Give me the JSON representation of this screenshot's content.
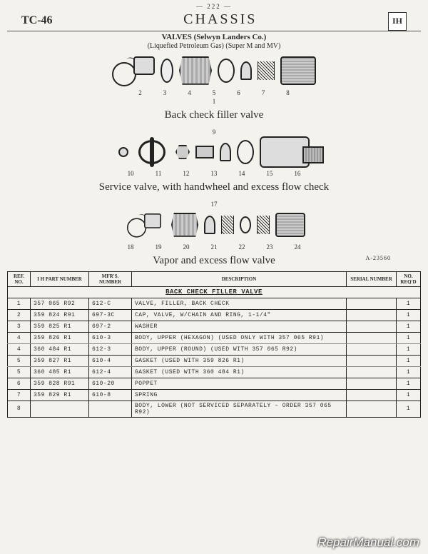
{
  "page_number": "— 222 —",
  "doc_code": "TC-46",
  "title": "CHASSIS",
  "logo_text": "IH",
  "subtitle_line1": "VALVES (Selwyn Landers Co.)",
  "subtitle_line2": "(Liquefied Petroleum Gas) (Super M and MV)",
  "diagrams": {
    "d1": {
      "label": "Back check filler valve",
      "assembly_ref": "1",
      "refs": [
        "2",
        "3",
        "4",
        "5",
        "6",
        "7",
        "8"
      ]
    },
    "d2": {
      "label": "Service valve, with handwheel and excess flow check",
      "assembly_ref": "9",
      "refs": [
        "10",
        "11",
        "12",
        "13",
        "14",
        "15",
        "16"
      ]
    },
    "d3": {
      "label": "Vapor and excess flow valve",
      "assembly_ref": "17",
      "refs": [
        "18",
        "19",
        "20",
        "21",
        "22",
        "23",
        "24"
      ],
      "drawing_no": "A-23560"
    }
  },
  "table": {
    "headers": {
      "ref": "Ref. No.",
      "ih": "I H Part Number",
      "mfr": "Mfr's. Number",
      "desc": "Description",
      "serial": "Serial Number",
      "req": "No. Req'd"
    },
    "section_title": "BACK CHECK FILLER VALVE",
    "rows": [
      {
        "ref": "1",
        "ih": "357 065 R92",
        "mfr": "612-C",
        "desc": "Valve, filler, back check",
        "ser": "",
        "req": "1",
        "rule": true
      },
      {
        "ref": "2",
        "ih": "359 824 R91",
        "mfr": "697-3C",
        "desc": "Cap, valve, w/chain and ring, 1-1/4\"",
        "ser": "",
        "req": "1",
        "rule": true
      },
      {
        "ref": "3",
        "ih": "359 825 R1",
        "mfr": "697-2",
        "desc": "Washer",
        "ser": "",
        "req": "1",
        "rule": true
      },
      {
        "ref": "4",
        "ih": "359 826 R1",
        "mfr": "610-3",
        "desc": "Body, upper (hexagon) (used only with 357 065 R91)",
        "ser": "",
        "req": "1"
      },
      {
        "ref": "4",
        "ih": "360 484 R1",
        "mfr": "612-3",
        "desc": "Body, upper (round) (used with 357 065 R92)",
        "ser": "",
        "req": "1",
        "rule": true
      },
      {
        "ref": "5",
        "ih": "359 827 R1",
        "mfr": "610-4",
        "desc": "Gasket (used with 359 826 R1)",
        "ser": "",
        "req": "1"
      },
      {
        "ref": "5",
        "ih": "360 485 R1",
        "mfr": "612-4",
        "desc": "Gasket (used with 360 484 R1)",
        "ser": "",
        "req": "1",
        "rule": true
      },
      {
        "ref": "6",
        "ih": "359 828 R91",
        "mfr": "610-20",
        "desc": "Poppet",
        "ser": "",
        "req": "1",
        "rule": true
      },
      {
        "ref": "7",
        "ih": "359 829 R1",
        "mfr": "610-8",
        "desc": "Spring",
        "ser": "",
        "req": "1",
        "rule": true
      },
      {
        "ref": "8",
        "ih": "",
        "mfr": "",
        "desc": "Body, lower (not serviced separately – order 357 065 R92)",
        "ser": "",
        "req": "1",
        "rule": true
      }
    ]
  },
  "watermark": "RepairManual.com"
}
